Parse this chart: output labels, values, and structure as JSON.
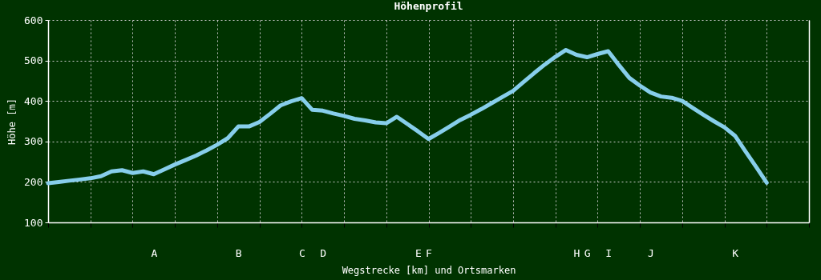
{
  "chart_data": {
    "type": "line",
    "title": "Höhenprofil",
    "xlabel": "Wegstrecke [km] und Ortsmarken",
    "ylabel": "Höhe [m]",
    "categories": [
      null,
      null,
      null,
      null,
      null,
      null,
      null,
      null,
      null,
      null,
      "A",
      null,
      null,
      null,
      null,
      null,
      null,
      null,
      "B",
      null,
      null,
      null,
      null,
      null,
      "C",
      null,
      "D",
      null,
      null,
      null,
      null,
      null,
      null,
      null,
      null,
      "E",
      "F",
      null,
      null,
      null,
      null,
      null,
      null,
      null,
      null,
      null,
      null,
      null,
      null,
      null,
      "H",
      "G",
      null,
      "I",
      null,
      null,
      null,
      "J",
      null,
      null,
      null,
      null,
      null,
      null,
      null,
      "K",
      null,
      null,
      null,
      null,
      null,
      null,
      null
    ],
    "series": [
      {
        "color": "#87ceeb",
        "values": [
          197,
          200,
          203,
          206,
          209,
          214,
          226,
          229,
          222,
          226,
          219,
          231,
          243,
          254,
          265,
          278,
          292,
          308,
          337,
          337,
          348,
          368,
          389,
          399,
          407,
          378,
          376,
          369,
          363,
          356,
          352,
          347,
          345,
          361,
          343,
          325,
          306,
          321,
          337,
          353,
          366,
          380,
          395,
          410,
          425,
          447,
          469,
          490,
          509,
          526,
          514,
          508,
          516,
          523,
          489,
          457,
          438,
          421,
          411,
          408,
          400,
          383,
          366,
          350,
          335,
          314,
          275,
          237,
          198,
          null,
          null,
          null,
          null
        ]
      }
    ],
    "ylim": [
      100,
      600
    ],
    "yticks": [
      100,
      200,
      300,
      400,
      500,
      600
    ],
    "grid": true
  }
}
